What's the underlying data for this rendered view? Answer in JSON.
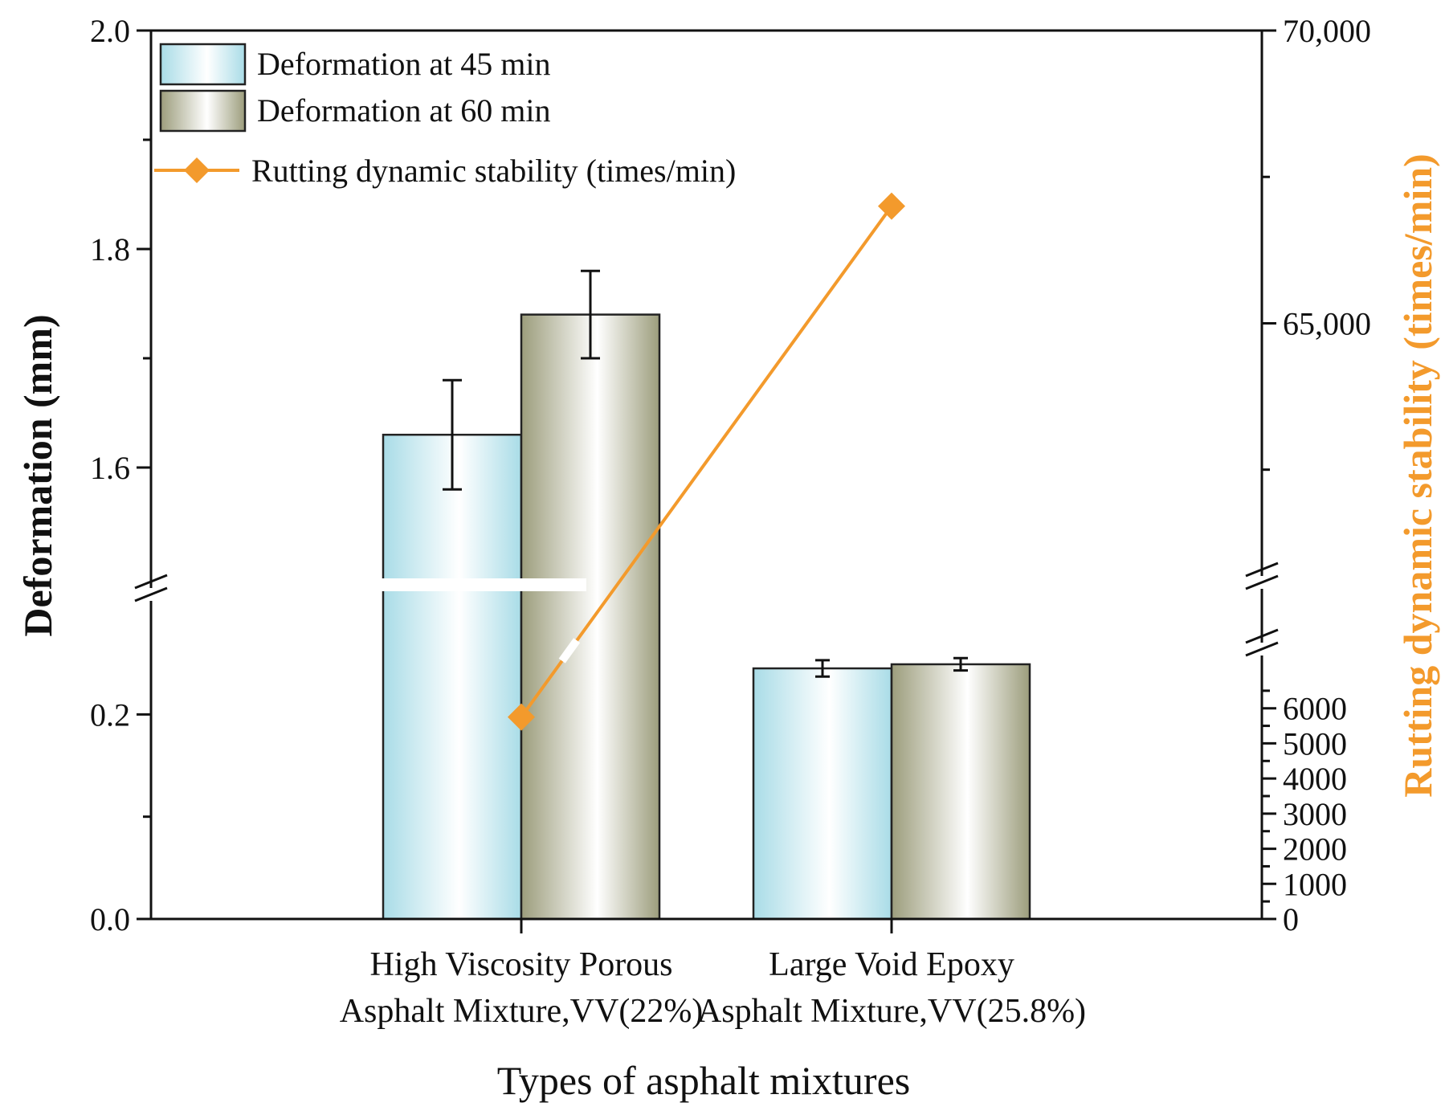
{
  "chart_data": {
    "type": "bar",
    "xlabel": "Types of asphalt mixtures",
    "ylabel": "Deformation (mm)",
    "ylabel_right": "Rutting dynamic stability (times/min)",
    "categories": [
      [
        "High Viscosity Porous",
        "Asphalt Mixture,VV(22%)"
      ],
      [
        "Large Void Epoxy",
        "Asphalt Mixture,VV(25.8%)"
      ]
    ],
    "y_left": {
      "broken": true,
      "lower_range": [
        0,
        0.3
      ],
      "upper_range": [
        1.5,
        2.0
      ],
      "lower_ticks": [
        "0.0",
        "0.2"
      ],
      "upper_ticks": [
        "1.6",
        "1.8",
        "2.0"
      ]
    },
    "y_right": {
      "broken": true,
      "lower_range": [
        0,
        7000
      ],
      "upper_range": [
        61000,
        70000
      ],
      "lower_ticks": [
        "0",
        "1000",
        "2000",
        "3000",
        "4000",
        "5000",
        "6000"
      ],
      "upper_ticks": [
        "65,000",
        "70,000"
      ]
    },
    "series": [
      {
        "name": "Deformation at 45 min",
        "type": "bar",
        "axis": "left",
        "values": [
          1.63,
          0.245
        ],
        "errors": [
          0.05,
          0.008
        ],
        "color": "#bfe6ee"
      },
      {
        "name": "Deformation at 60 min",
        "type": "bar",
        "axis": "left",
        "values": [
          1.74,
          0.249
        ],
        "errors": [
          0.04,
          0.006
        ],
        "color": "#aaab8f"
      },
      {
        "name": "Rutting dynamic stability (times/min)",
        "type": "line",
        "axis": "right",
        "marker": "diamond",
        "values": [
          5750,
          67000
        ],
        "color": "#f39a2c"
      }
    ],
    "legend_position": "top-left",
    "grid": false
  }
}
